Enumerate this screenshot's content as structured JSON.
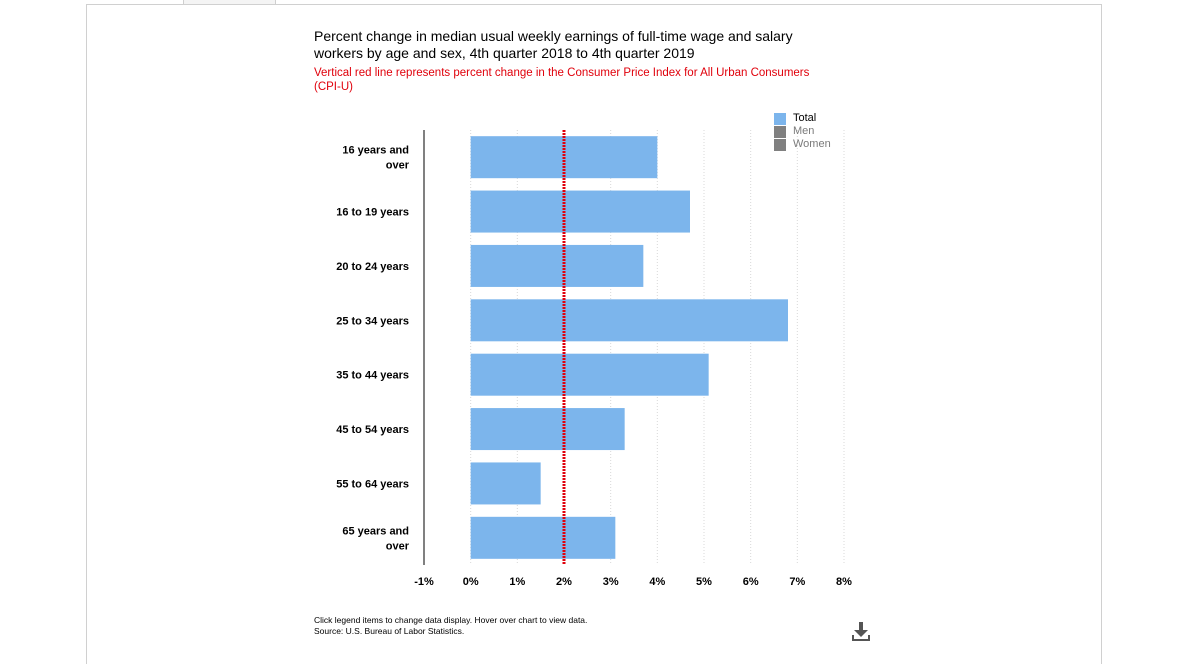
{
  "title": "Percent change in median usual weekly earnings of full-time wage and salary workers by age and sex, 4th quarter 2018 to 4th quarter 2019",
  "subtitle": "Vertical red line represents percent change in the Consumer Price Index for All Urban Consumers (CPI-U)",
  "legend": {
    "items": [
      {
        "label": "Total",
        "color": "#7cb5ec",
        "active": true
      },
      {
        "label": "Men",
        "color": "#808080",
        "active": false
      },
      {
        "label": "Women",
        "color": "#808080",
        "active": false
      }
    ]
  },
  "footnote": {
    "line1": "Click legend items to change data display. Hover over chart to view data.",
    "line2": "Source: U.S. Bureau of Labor Statistics."
  },
  "download_icon": "download-icon",
  "colors": {
    "bar": "#7cb5ec",
    "cpi_line": "#e0000b",
    "grid": "#d9d9d9"
  },
  "chart_data": {
    "type": "bar",
    "orientation": "horizontal",
    "categories": [
      "16 years and over",
      "16 to 19 years",
      "20 to 24 years",
      "25 to 34 years",
      "35 to 44 years",
      "45 to 54 years",
      "55 to 64 years",
      "65 years and over"
    ],
    "category_lines": [
      [
        "16 years and",
        "over"
      ],
      [
        "16 to 19 years"
      ],
      [
        "20 to 24 years"
      ],
      [
        "25 to 34 years"
      ],
      [
        "35 to 44 years"
      ],
      [
        "45 to 54 years"
      ],
      [
        "55 to 64 years"
      ],
      [
        "65 years and",
        "over"
      ]
    ],
    "series": [
      {
        "name": "Total",
        "values": [
          4.0,
          4.7,
          3.7,
          6.8,
          5.1,
          3.3,
          1.5,
          3.1
        ]
      }
    ],
    "reference_line": {
      "value": 2.0
    },
    "xlim": [
      -1,
      8
    ],
    "xticks": [
      -1,
      0,
      1,
      2,
      3,
      4,
      5,
      6,
      7,
      8
    ],
    "xtick_labels": [
      "-1%",
      "0%",
      "1%",
      "2%",
      "3%",
      "4%",
      "5%",
      "6%",
      "7%",
      "8%"
    ],
    "grid": "vertical-dotted",
    "legend_position": "top-right"
  }
}
